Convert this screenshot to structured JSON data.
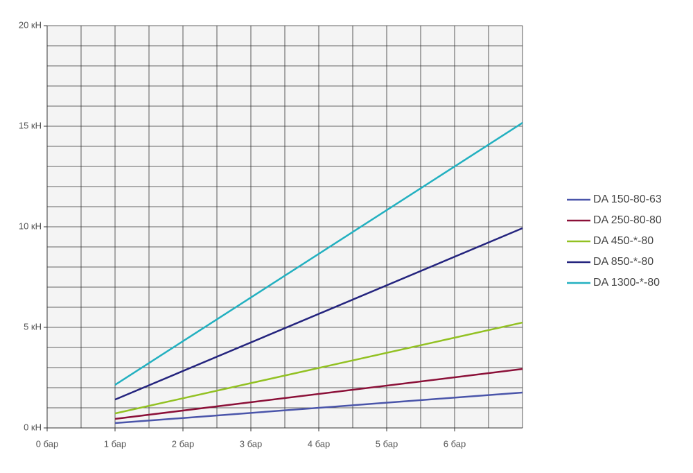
{
  "chart_data": {
    "type": "line",
    "x": [
      1,
      7
    ],
    "series": [
      {
        "name": "DA 150-80-63",
        "color": "#4a55aa",
        "values": [
          0.24,
          1.76
        ]
      },
      {
        "name": "DA 250-80-80",
        "color": "#8b1038",
        "values": [
          0.45,
          2.93
        ]
      },
      {
        "name": "DA 450-*-80",
        "color": "#92c122",
        "values": [
          0.72,
          5.24
        ]
      },
      {
        "name": "DA 850-*-80",
        "color": "#24247e",
        "values": [
          1.41,
          9.93
        ]
      },
      {
        "name": "DA 1300-*-80",
        "color": "#22b0c0",
        "values": [
          2.14,
          15.17
        ]
      }
    ],
    "xlim": [
      0,
      7
    ],
    "xticks": [
      {
        "value": 0,
        "label": "0 бар"
      },
      {
        "value": 1,
        "label": "1 бар"
      },
      {
        "value": 2,
        "label": "2 бар"
      },
      {
        "value": 3,
        "label": "3 бар"
      },
      {
        "value": 4,
        "label": "4 бар"
      },
      {
        "value": 5,
        "label": "5 бар"
      },
      {
        "value": 6,
        "label": "6 бар"
      }
    ],
    "xgrid": [
      0.5,
      1,
      1.5,
      2,
      2.5,
      3,
      3.5,
      4,
      4.5,
      5,
      5.5,
      6,
      6.5,
      7
    ],
    "ylim": [
      0,
      20
    ],
    "yticks": [
      {
        "value": 0,
        "label": "0 кН"
      },
      {
        "value": 5,
        "label": "5 кН"
      },
      {
        "value": 10,
        "label": "10 кН"
      },
      {
        "value": 15,
        "label": "15 кН"
      },
      {
        "value": 20,
        "label": "20 кН"
      }
    ],
    "ygrid": [
      1,
      2,
      3,
      4,
      5,
      6,
      7,
      8,
      9,
      10,
      11,
      12,
      13,
      14,
      15,
      16,
      17,
      18,
      19,
      20
    ],
    "grid": true,
    "legend": "right"
  }
}
